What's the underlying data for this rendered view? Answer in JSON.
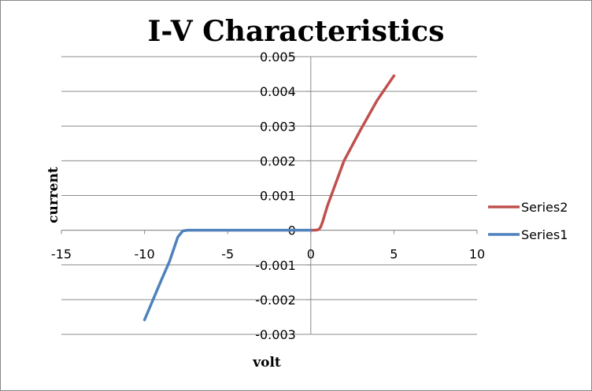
{
  "chart_data": {
    "type": "line",
    "title": "I-V Characteristics",
    "xlabel": "volt",
    "ylabel": "current",
    "xlim": [
      -15,
      10
    ],
    "ylim": [
      -0.003,
      0.005
    ],
    "xticks": [
      -15,
      -10,
      -5,
      0,
      5,
      10
    ],
    "yticks": [
      0.005,
      0.004,
      0.003,
      0.002,
      0.001,
      0,
      -0.001,
      -0.002,
      -0.003
    ],
    "xtick_labels": [
      "-15",
      "-10",
      "-5",
      "0",
      "5",
      "10"
    ],
    "ytick_labels": [
      "0.005",
      "0.004",
      "0.003",
      "0.002",
      "0.001",
      "0",
      "-0.001",
      "-0.002",
      "-0.003"
    ],
    "grid": true,
    "legend_position": "right",
    "series": [
      {
        "name": "Series2",
        "color": "#C0504D",
        "points": [
          [
            0,
            0
          ],
          [
            0.2,
            1e-06
          ],
          [
            0.4,
            8e-06
          ],
          [
            0.5,
            3e-05
          ],
          [
            0.6,
            0.0001
          ],
          [
            0.7,
            0.00023
          ],
          [
            1,
            0.0007
          ],
          [
            2,
            0.002
          ],
          [
            3,
            0.0029
          ],
          [
            4,
            0.00375
          ],
          [
            5,
            0.00445
          ]
        ]
      },
      {
        "name": "Series1",
        "color": "#4F81BD",
        "points": [
          [
            -10,
            -0.00258
          ],
          [
            -9,
            -0.00145
          ],
          [
            -8.5,
            -0.0009
          ],
          [
            -8,
            -0.0002
          ],
          [
            -7.7,
            -2e-05
          ],
          [
            -7.4,
            0
          ],
          [
            -7,
            0
          ],
          [
            -5,
            0
          ],
          [
            -3,
            0
          ],
          [
            -1,
            0
          ],
          [
            0,
            0
          ]
        ]
      }
    ]
  }
}
